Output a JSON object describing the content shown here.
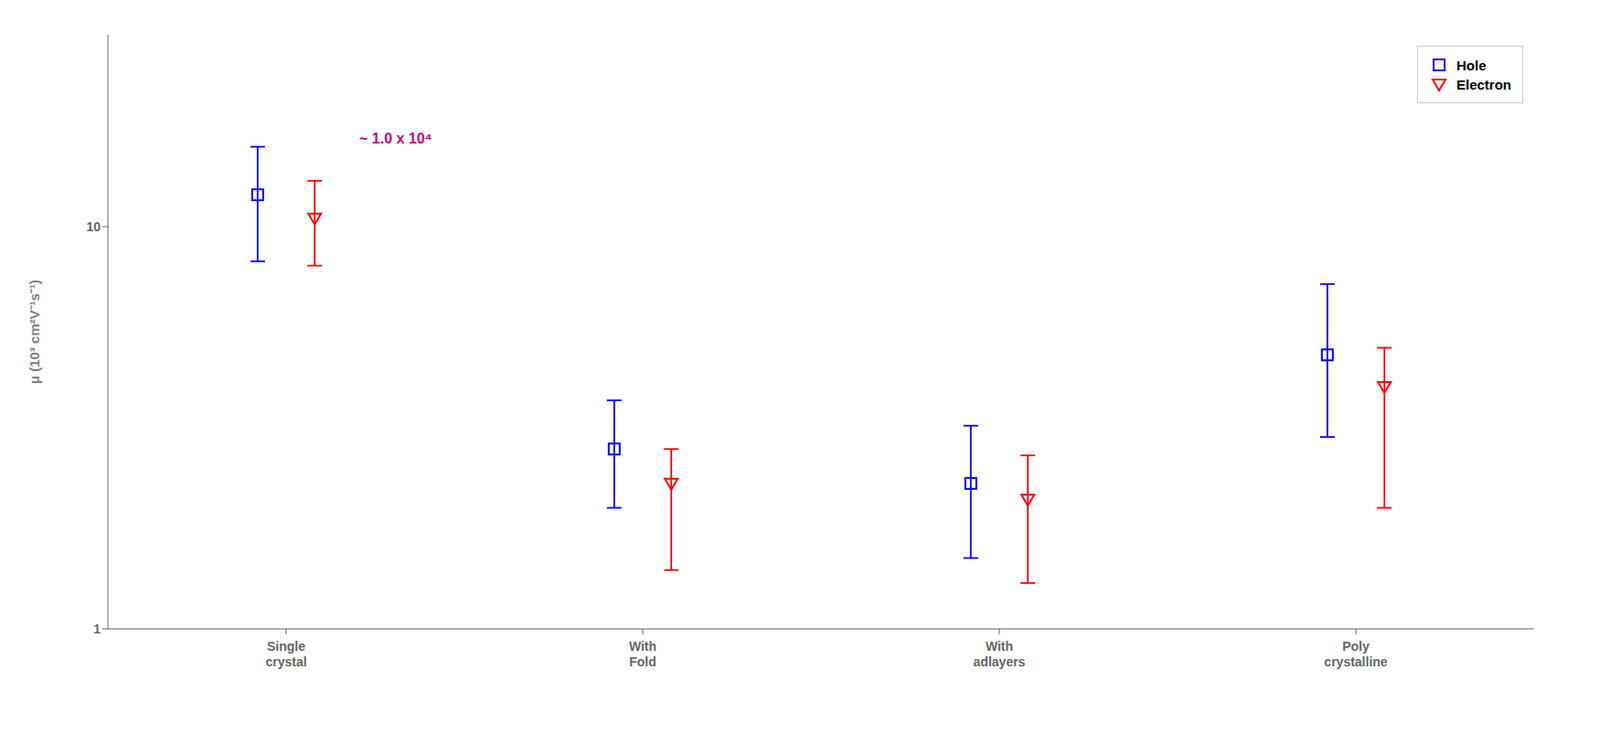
{
  "chart_data": {
    "type": "scatter",
    "ylabel": "μ (10³ cm²V⁻¹s⁻¹)",
    "categories": [
      "Single\ncrystal",
      "With\nFold",
      "With\nadlayers",
      "Poly\ncrystalline"
    ],
    "log": "y",
    "ylim": [
      1,
      30
    ],
    "yticks": [
      1,
      10
    ],
    "grid": false,
    "legend": "upper right",
    "series": [
      {
        "name": "Hole",
        "color": "#0000FF",
        "marker": "square",
        "values": [
          12.0,
          2.8,
          2.3,
          4.8
        ],
        "error_upper": [
          3.8,
          0.9,
          0.9,
          2.4
        ],
        "error_lower": [
          3.8,
          0.8,
          0.8,
          1.8
        ]
      },
      {
        "name": "Electron",
        "color": "#FF0000",
        "marker": "triangle_down",
        "values": [
          10.5,
          2.3,
          2.1,
          4.0
        ],
        "error_upper": [
          2.5,
          0.5,
          0.6,
          1.0
        ],
        "error_lower": [
          2.5,
          0.9,
          0.8,
          2.0
        ]
      }
    ],
    "annotations": [
      {
        "text": "~ 1.0 x 10⁴",
        "color": "#CC0077"
      }
    ]
  }
}
